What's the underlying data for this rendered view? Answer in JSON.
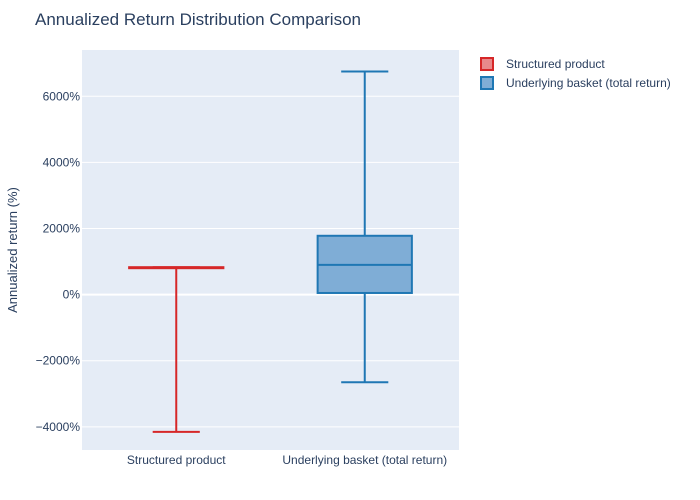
{
  "chart_data": {
    "type": "box",
    "title": "Annualized Return Distribution Comparison",
    "xlabel": "",
    "ylabel": "Annualized return (%)",
    "ylim": [
      -4700,
      7400
    ],
    "yticks": [
      -4000,
      -2000,
      0,
      2000,
      4000,
      6000
    ],
    "ytick_labels": [
      "−4000%",
      "−2000%",
      "0%",
      "2000%",
      "4000%",
      "6000%"
    ],
    "categories": [
      "Structured product",
      "Underlying basket (total return)"
    ],
    "grid": true,
    "legend_position": "top-right",
    "series": [
      {
        "name": "Structured product",
        "color": "#d62728",
        "fill": "#e8898b",
        "min": -4150,
        "q1": 820,
        "median": 820,
        "q3": 830,
        "max": 830
      },
      {
        "name": "Underlying basket (total return)",
        "color": "#1f77b4",
        "fill": "#7fadd6",
        "min": -2650,
        "q1": 50,
        "median": 900,
        "q3": 1780,
        "max": 6750
      }
    ]
  }
}
